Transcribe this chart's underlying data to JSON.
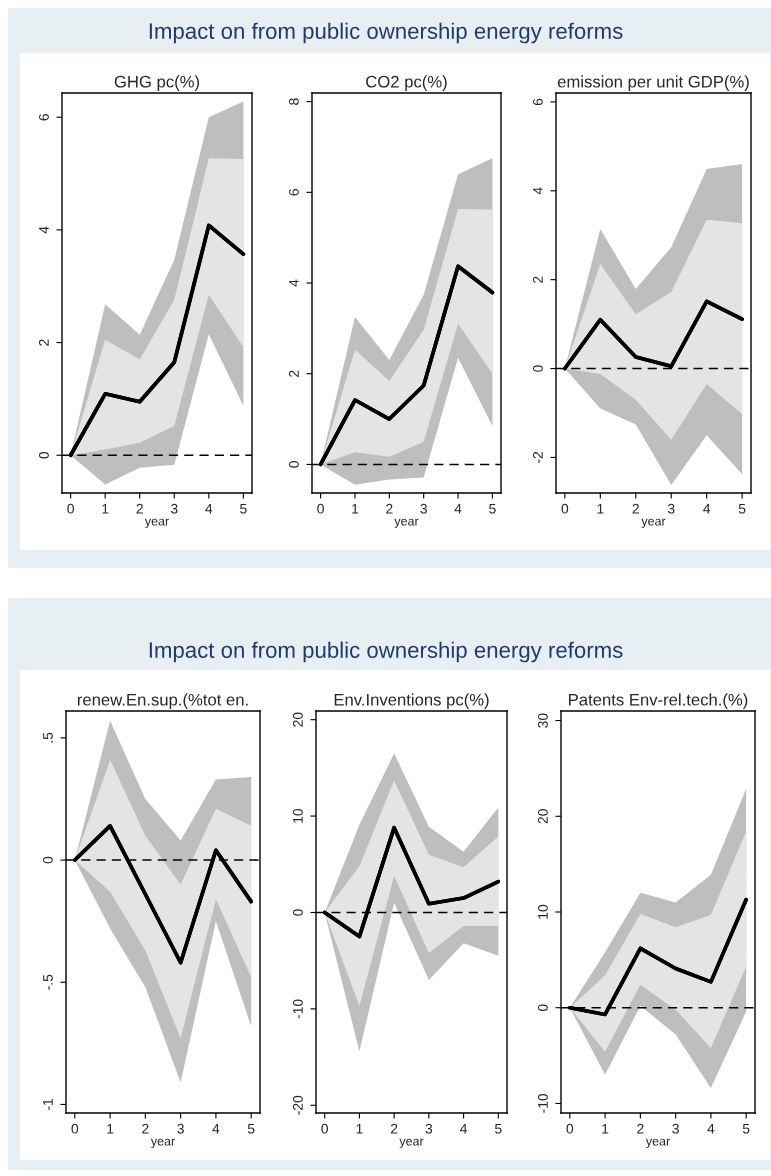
{
  "chart_data": [
    {
      "type": "line",
      "annotations": [
        "Impact on from public ownership energy reforms"
      ],
      "title": "GHG pc(%)",
      "xlabel": "year",
      "x": [
        0,
        1,
        2,
        3,
        4,
        5
      ],
      "xlim": [
        -0.25,
        5.25
      ],
      "xticks": [
        0,
        1,
        2,
        3,
        4,
        5
      ],
      "ylim": [
        -0.67,
        6.43
      ],
      "yticks": [
        0,
        2,
        4,
        6
      ],
      "grid": false,
      "legend": false,
      "ref_lines": [
        {
          "axis": "y",
          "value": 0,
          "color": "#000000",
          "line_style": "dashed"
        }
      ],
      "series": [
        {
          "color": "#000000",
          "values": [
            0,
            1.09,
            0.95,
            1.65,
            4.08,
            3.57
          ],
          "lower": [
            0,
            -0.52,
            -0.22,
            -0.17,
            2.15,
            0.88
          ],
          "upper": [
            0,
            2.68,
            2.14,
            3.47,
            6.0,
            6.28
          ]
        },
        {
          "color": "#000000",
          "values": [
            0,
            1.09,
            0.95,
            1.65,
            4.08,
            3.57
          ],
          "lower": [
            0,
            0.1,
            0.22,
            0.52,
            2.85,
            1.92
          ],
          "upper": [
            0,
            2.05,
            1.7,
            2.76,
            5.27,
            5.26
          ]
        }
      ]
    },
    {
      "type": "line",
      "title": "CO2 pc(%)",
      "xlabel": "year",
      "x": [
        0,
        1,
        2,
        3,
        4,
        5
      ],
      "xlim": [
        -0.25,
        5.25
      ],
      "xticks": [
        0,
        1,
        2,
        3,
        4,
        5
      ],
      "ylim": [
        -0.63,
        8.19
      ],
      "yticks": [
        0,
        2,
        4,
        6,
        8
      ],
      "grid": false,
      "legend": false,
      "ref_lines": [
        {
          "axis": "y",
          "value": 0,
          "color": "#000000",
          "line_style": "dashed"
        }
      ],
      "series": [
        {
          "color": "#000000",
          "values": [
            0,
            1.42,
            1.0,
            1.74,
            4.37,
            3.79
          ],
          "lower": [
            0,
            -0.45,
            -0.33,
            -0.29,
            2.35,
            0.85
          ],
          "upper": [
            0,
            3.25,
            2.3,
            3.74,
            6.4,
            6.75
          ]
        },
        {
          "color": "#000000",
          "values": [
            0,
            1.42,
            1.0,
            1.74,
            4.37,
            3.79
          ],
          "lower": [
            0,
            0.27,
            0.17,
            0.5,
            3.1,
            2.0
          ],
          "upper": [
            0,
            2.53,
            1.84,
            2.97,
            5.63,
            5.62
          ]
        }
      ]
    },
    {
      "type": "line",
      "title": "emission per unit GDP(%)",
      "xlabel": "year",
      "x": [
        0,
        1,
        2,
        3,
        4,
        5
      ],
      "xlim": [
        -0.25,
        5.25
      ],
      "xticks": [
        0,
        1,
        2,
        3,
        4,
        5
      ],
      "ylim": [
        -2.8,
        6.2
      ],
      "yticks": [
        -2,
        0,
        2,
        4,
        6
      ],
      "grid": false,
      "legend": false,
      "ref_lines": [
        {
          "axis": "y",
          "value": 0,
          "color": "#000000",
          "line_style": "dashed"
        }
      ],
      "series": [
        {
          "color": "#000000",
          "values": [
            0,
            1.1,
            0.26,
            0.05,
            1.51,
            1.11
          ],
          "lower": [
            0,
            -0.9,
            -1.26,
            -2.62,
            -1.5,
            -2.38
          ],
          "upper": [
            0,
            3.14,
            1.79,
            2.73,
            4.49,
            4.6
          ]
        },
        {
          "color": "#000000",
          "values": [
            0,
            1.1,
            0.26,
            0.05,
            1.51,
            1.11
          ],
          "lower": [
            0,
            -0.12,
            -0.7,
            -1.6,
            -0.35,
            -1.03
          ],
          "upper": [
            0,
            2.35,
            1.22,
            1.72,
            3.35,
            3.27
          ]
        }
      ]
    },
    {
      "type": "line",
      "annotations": [
        "Impact on from public ownership energy reforms"
      ],
      "title": "renew.En.sup.(%tot en.",
      "xlabel": "year",
      "x": [
        0,
        1,
        2,
        3,
        4,
        5
      ],
      "xlim": [
        -0.25,
        5.25
      ],
      "xticks": [
        0,
        1,
        2,
        3,
        4,
        5
      ],
      "ylim": [
        -1.035,
        0.61
      ],
      "yticks": [
        {
          "value": -1,
          "label": "-1"
        },
        {
          "value": -0.5,
          "label": "-.5"
        },
        0,
        {
          "value": 0.5,
          "label": ".5"
        }
      ],
      "grid": false,
      "legend": false,
      "ref_lines": [
        {
          "axis": "y",
          "value": 0,
          "color": "#000000",
          "line_style": "dashed"
        }
      ],
      "series": [
        {
          "color": "#000000",
          "values": [
            0,
            0.14,
            -0.14,
            -0.42,
            0.04,
            -0.17
          ],
          "lower": [
            0,
            -0.28,
            -0.52,
            -0.91,
            -0.25,
            -0.68
          ],
          "upper": [
            0,
            0.57,
            0.25,
            0.08,
            0.33,
            0.34
          ]
        },
        {
          "color": "#000000",
          "values": [
            0,
            0.14,
            -0.14,
            -0.42,
            0.04,
            -0.17
          ],
          "lower": [
            0,
            -0.13,
            -0.37,
            -0.73,
            -0.16,
            -0.48
          ],
          "upper": [
            0,
            0.41,
            0.1,
            -0.1,
            0.21,
            0.14
          ]
        }
      ]
    },
    {
      "type": "line",
      "title": "Env.Inventions pc(%)",
      "xlabel": "year",
      "x": [
        0,
        1,
        2,
        3,
        4,
        5
      ],
      "xlim": [
        -0.25,
        5.25
      ],
      "xticks": [
        0,
        1,
        2,
        3,
        4,
        5
      ],
      "ylim": [
        -20.8,
        20.9
      ],
      "yticks": [
        -20,
        -10,
        0,
        10,
        20
      ],
      "grid": false,
      "legend": false,
      "ref_lines": [
        {
          "axis": "y",
          "value": 0,
          "color": "#000000",
          "line_style": "dashed"
        }
      ],
      "series": [
        {
          "color": "#000000",
          "values": [
            0,
            -2.5,
            8.8,
            0.9,
            1.5,
            3.2
          ],
          "lower": [
            0,
            -14.4,
            1.0,
            -7.0,
            -3.2,
            -4.5
          ],
          "upper": [
            0,
            9.1,
            16.5,
            8.9,
            6.3,
            10.9
          ]
        },
        {
          "color": "#000000",
          "values": [
            0,
            -2.5,
            8.8,
            0.9,
            1.5,
            3.2
          ],
          "lower": [
            0,
            -9.7,
            3.8,
            -4.2,
            -1.4,
            -1.4
          ],
          "upper": [
            0,
            4.8,
            13.7,
            6.0,
            4.7,
            7.9
          ]
        }
      ]
    },
    {
      "type": "line",
      "title": "Patents Env-rel.tech.(%)",
      "xlabel": "year",
      "x": [
        0,
        1,
        2,
        3,
        4,
        5
      ],
      "xlim": [
        -0.25,
        5.25
      ],
      "xticks": [
        0,
        1,
        2,
        3,
        4,
        5
      ],
      "ylim": [
        -11.0,
        31.0
      ],
      "yticks": [
        -10,
        0,
        10,
        20,
        30
      ],
      "grid": false,
      "legend": false,
      "ref_lines": [
        {
          "axis": "y",
          "value": 0,
          "color": "#000000",
          "line_style": "dashed"
        }
      ],
      "series": [
        {
          "color": "#000000",
          "values": [
            0,
            -0.7,
            6.2,
            4.1,
            2.7,
            11.3
          ],
          "lower": [
            0,
            -7.0,
            0.2,
            -2.8,
            -8.4,
            -0.4
          ],
          "upper": [
            0,
            5.8,
            12.0,
            11.0,
            13.9,
            22.9
          ]
        },
        {
          "color": "#000000",
          "values": [
            0,
            -0.7,
            6.2,
            4.1,
            2.7,
            11.3
          ],
          "lower": [
            0,
            -4.6,
            2.4,
            -0.2,
            -4.2,
            4.3
          ],
          "upper": [
            0,
            3.4,
            9.8,
            8.4,
            9.7,
            18.4
          ]
        }
      ]
    }
  ]
}
